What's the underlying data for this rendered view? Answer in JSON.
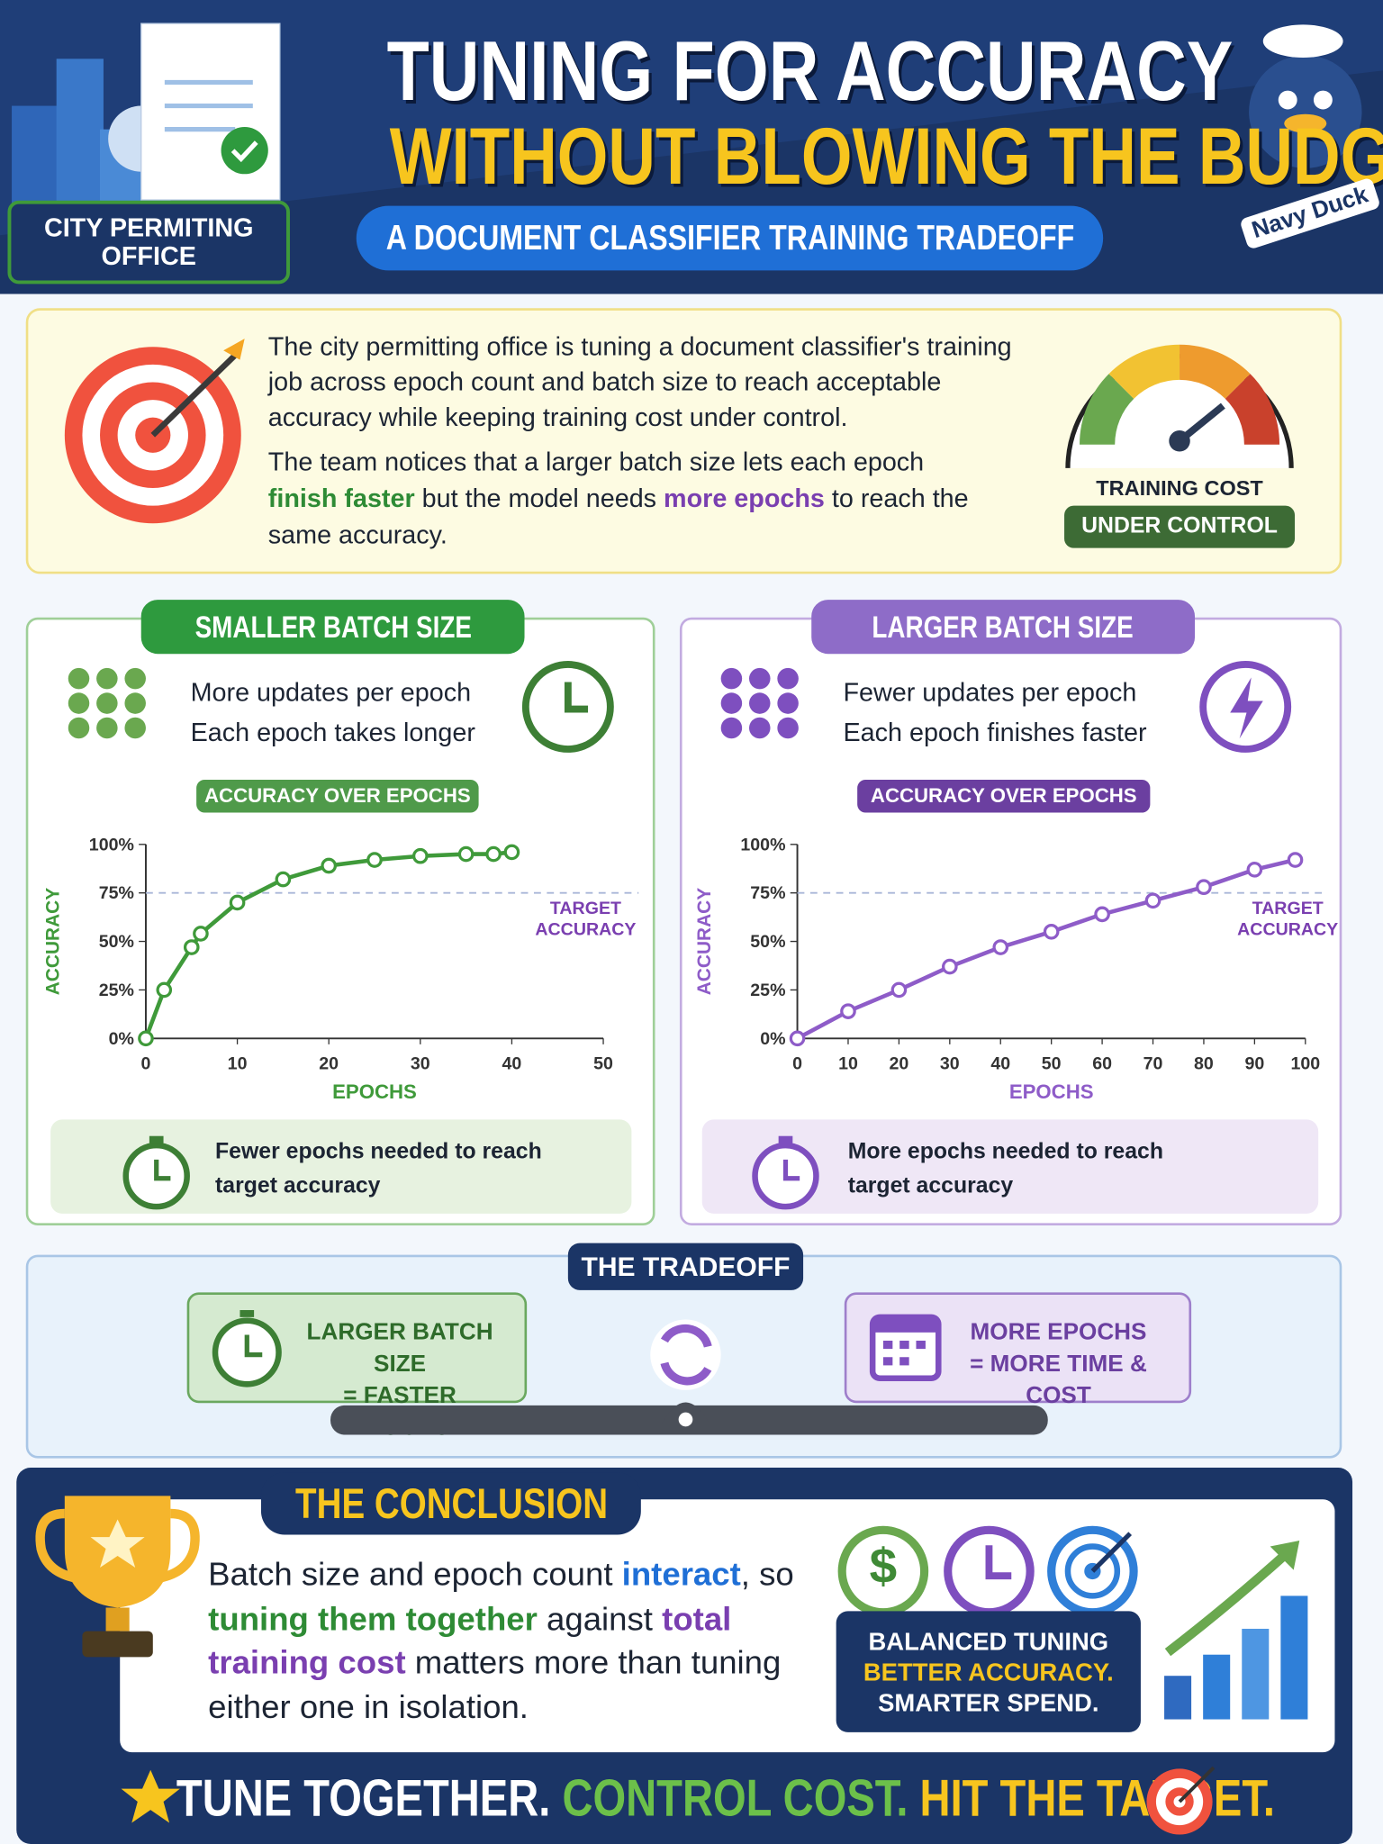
{
  "header": {
    "badge": "CITY PERMITING OFFICE",
    "title_1": "TUNING FOR ACCURACY",
    "title_2": "WITHOUT BLOWING THE BUDGET",
    "subtitle": "A DOCUMENT CLASSIFIER TRAINING TRADEOFF",
    "mascot": "Navy Duck"
  },
  "intro": {
    "paragraph_1": "The city permitting office is tuning a document classifier's training job across epoch count and batch size to reach acceptable accuracy while keeping training cost under control.",
    "paragraph_2": [
      "The team notices that a larger batch size lets each epoch ",
      "finish faster",
      " but the model needs ",
      "more epochs",
      " to reach the same accuracy."
    ],
    "gauge_label": "TRAINING COST",
    "gauge_badge": "UNDER CONTROL"
  },
  "panels": [
    {
      "heading": "SMALLER BATCH SIZE",
      "points": [
        "More updates per epoch",
        "Each epoch takes longer"
      ],
      "note": "Fewer epochs needed to reach target accuracy"
    },
    {
      "heading": "LARGER BATCH SIZE",
      "points": [
        "Fewer updates per epoch",
        "Each epoch finishes faster"
      ],
      "note": "More epochs needed to reach target accuracy"
    }
  ],
  "chart_data": [
    {
      "type": "line",
      "title": "ACCURACY OVER EPOCHS",
      "x_label": "EPOCHS",
      "y_label": "ACCURACY",
      "x": [
        0,
        2,
        5,
        6,
        10,
        15,
        20,
        25,
        30,
        35,
        38,
        40
      ],
      "series": [
        {
          "color": "#3f9a3a",
          "values": [
            0,
            25,
            47,
            54,
            70,
            82,
            89,
            92,
            94,
            95,
            95,
            96
          ]
        }
      ],
      "xlim": [
        0,
        50
      ],
      "xticks": [
        0,
        10,
        20,
        30,
        40,
        50
      ],
      "ylim": [
        0,
        100
      ],
      "yticks": [
        {
          "value": 0,
          "label": "0%"
        },
        {
          "value": 25,
          "label": "25%"
        },
        {
          "value": 50,
          "label": "50%"
        },
        {
          "value": 75,
          "label": "75%"
        },
        {
          "value": 100,
          "label": "100%"
        }
      ],
      "target_line": 75,
      "annotation": "TARGET ACCURACY",
      "annotation_color": "#7a3fb0"
    },
    {
      "type": "line",
      "title": "ACCURACY OVER EPOCHS",
      "x_label": "EPOCHS",
      "y_label": "ACCURACY",
      "x": [
        0,
        10,
        20,
        30,
        40,
        50,
        60,
        70,
        80,
        90,
        98
      ],
      "series": [
        {
          "color": "#8e5cc8",
          "values": [
            0,
            14,
            25,
            37,
            47,
            55,
            64,
            71,
            78,
            87,
            92
          ]
        }
      ],
      "xlim": [
        0,
        100
      ],
      "xticks": [
        0,
        10,
        20,
        30,
        40,
        50,
        60,
        70,
        80,
        90,
        100
      ],
      "ylim": [
        0,
        100
      ],
      "yticks": [
        {
          "value": 0,
          "label": "0%"
        },
        {
          "value": 25,
          "label": "25%"
        },
        {
          "value": 50,
          "label": "50%"
        },
        {
          "value": 75,
          "label": "75%"
        },
        {
          "value": 100,
          "label": "100%"
        }
      ],
      "target_line": 75,
      "annotation": "TARGET ACCURACY",
      "annotation_color": "#7a3fb0"
    }
  ],
  "tradeoff": {
    "heading": "THE TRADEOFF",
    "left": [
      "LARGER BATCH SIZE",
      "= FASTER EPOCHS"
    ],
    "right": [
      "MORE EPOCHS",
      "= MORE TIME & COST"
    ]
  },
  "conclusion": {
    "heading": "THE CONCLUSION",
    "text": [
      "Batch size and epoch count ",
      "interact",
      ", so ",
      "tuning them together",
      " against ",
      "total training cost",
      " matters more than tuning either one in isolation."
    ],
    "icon_dollar": "$",
    "badge": [
      "BALANCED TUNING",
      "BETTER ACCURACY.",
      "SMARTER SPEND."
    ]
  },
  "footer": [
    "TUNE TOGETHER.",
    "CONTROL COST.",
    "HIT THE TARGET."
  ]
}
